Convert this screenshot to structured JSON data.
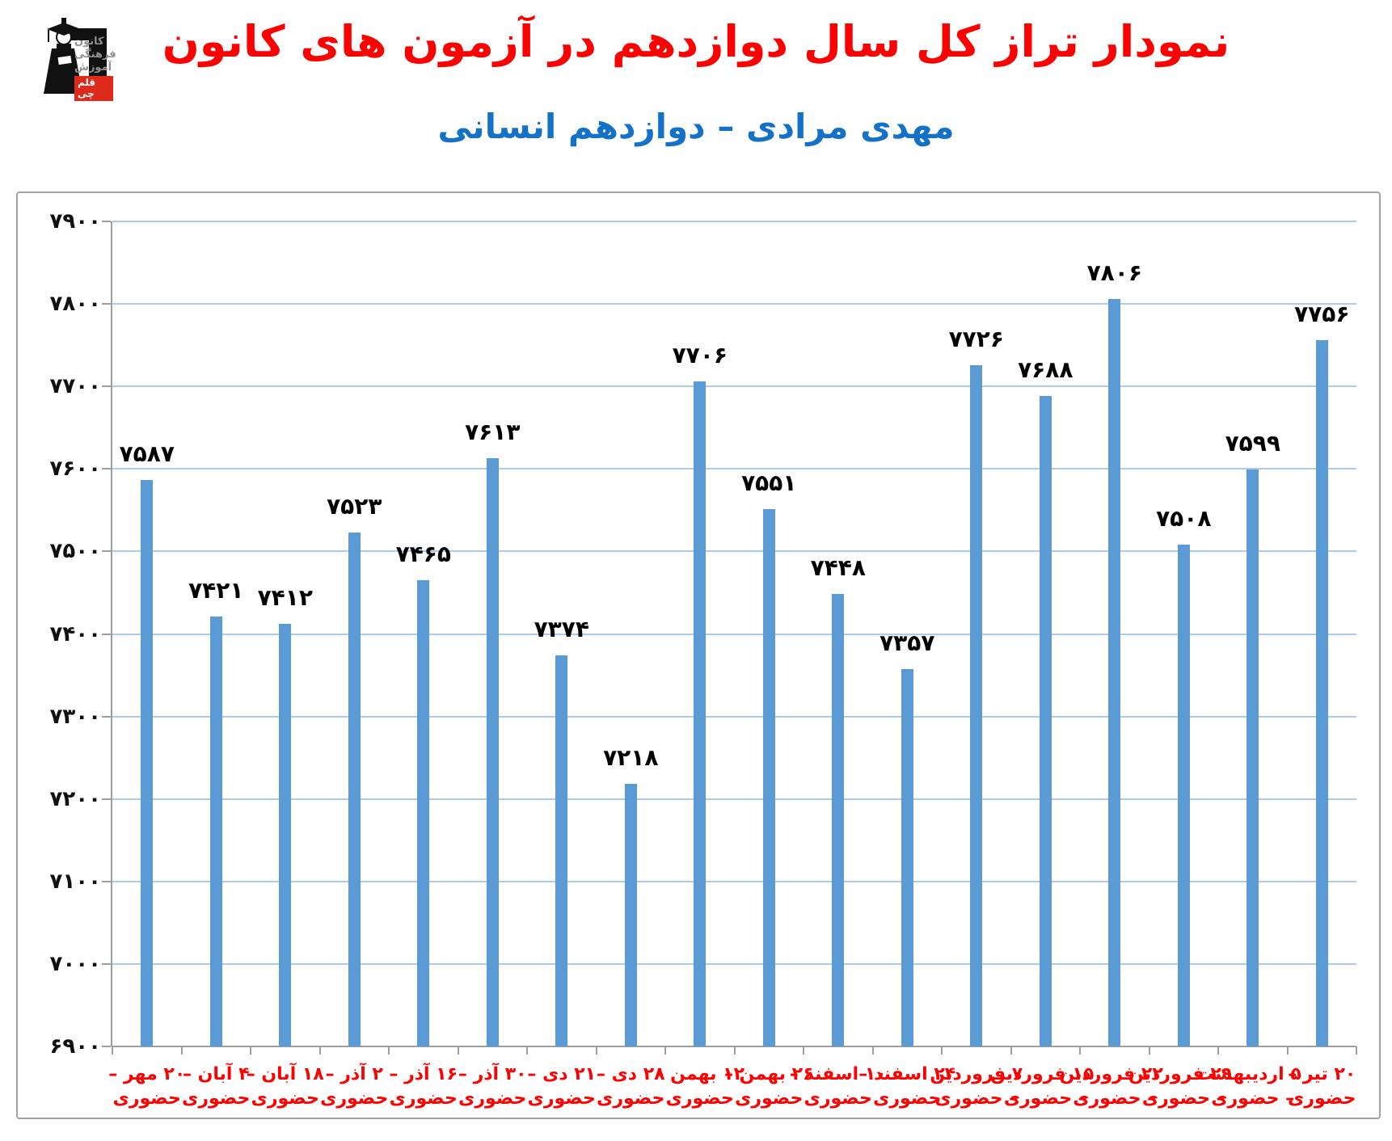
{
  "logo": {
    "org_lines": [
      "کانون",
      "فرهنگی",
      "آموزش"
    ],
    "brand": "قلم چی",
    "brand_bg": "#DD2A1B"
  },
  "header": {
    "title": "نمودار تراز کل سال دوازدهم در آزمون های کانون",
    "title_color": "#FF0000",
    "subtitle": "مهدی مرادی – دوازدهم انسانی",
    "subtitle_color": "#1471C8"
  },
  "chart_data": {
    "type": "bar",
    "title": "نمودار تراز کل سال دوازدهم در آزمون های کانون",
    "subtitle": "مهدی مرادی – دوازدهم انسانی",
    "categories": [
      {
        "line1": "۲۰ مهر –",
        "line2": "حضوری"
      },
      {
        "line1": "۴ آبان –",
        "line2": "حضوری"
      },
      {
        "line1": "۱۸ آبان –",
        "line2": "حضوری"
      },
      {
        "line1": "۲ آذر –",
        "line2": "حضوری"
      },
      {
        "line1": "۱۶ آذر –",
        "line2": "حضوری"
      },
      {
        "line1": "۳۰ آذر –",
        "line2": "حضوری"
      },
      {
        "line1": "۲۱ دی –",
        "line2": "حضوری"
      },
      {
        "line1": "۲۸ دی –",
        "line2": "حضوری"
      },
      {
        "line1": "۱۲ بهمن –",
        "line2": "حضوری"
      },
      {
        "line1": "۲۶ بهمن –",
        "line2": "حضوری"
      },
      {
        "line1": "۱۰ اسفند –",
        "line2": "حضوری"
      },
      {
        "line1": "۲۴ اسفند –",
        "line2": "حضوری"
      },
      {
        "line1": "۷ فروردین",
        "line2": "– حضوری"
      },
      {
        "line1": "۱۵ فروردین",
        "line2": "– حضوری"
      },
      {
        "line1": "۲۲ فروردین",
        "line2": "– حضوری"
      },
      {
        "line1": "۲۹ فروردین",
        "line2": "– حضوری"
      },
      {
        "line1": "۵ اردیبهشت",
        "line2": "– حضوری"
      },
      {
        "line1": "۲۰ تیر –",
        "line2": "حضوری"
      }
    ],
    "values": [
      7587,
      7421,
      7412,
      7523,
      7465,
      7613,
      7374,
      7218,
      7706,
      7551,
      7448,
      7357,
      7726,
      7688,
      7806,
      7508,
      7599,
      7756
    ],
    "value_labels": [
      "۷۵۸۷",
      "۷۴۲۱",
      "۷۴۱۲",
      "۷۵۲۳",
      "۷۴۶۵",
      "۷۶۱۳",
      "۷۳۷۴",
      "۷۲۱۸",
      "۷۷۰۶",
      "۷۵۵۱",
      "۷۴۴۸",
      "۷۳۵۷",
      "۷۷۲۶",
      "۷۶۸۸",
      "۷۸۰۶",
      "۷۵۰۸",
      "۷۵۹۹",
      "۷۷۵۶"
    ],
    "ylim": [
      6900,
      7900
    ],
    "y_tick_step": 100,
    "y_tick_labels_top_to_bottom": [
      "۷۹۰۰",
      "۷۸۰۰",
      "۷۷۰۰",
      "۷۶۰۰",
      "۷۵۰۰",
      "۷۴۰۰",
      "۷۳۰۰",
      "۷۲۰۰",
      "۷۱۰۰",
      "۷۰۰۰",
      "۶۹۰۰"
    ],
    "grid": true,
    "legend": false,
    "bar_color": "#5B9BD5",
    "gridline_color": "#AECBEB",
    "axis_color": "#9E9E9E",
    "category_label_color": "#FF0000",
    "value_label_color": "#000000"
  }
}
